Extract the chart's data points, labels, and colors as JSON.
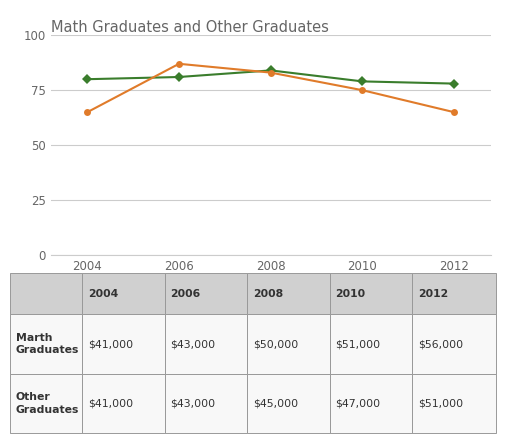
{
  "title": "Math Graduates and Other Graduates",
  "years": [
    2004,
    2006,
    2008,
    2010,
    2012
  ],
  "math_graduates": [
    80,
    81,
    84,
    79,
    78
  ],
  "other_graduates": [
    65,
    87,
    83,
    75,
    65
  ],
  "math_color": "#3a7d2c",
  "other_color": "#e07b2a",
  "ylim": [
    0,
    100
  ],
  "yticks": [
    0,
    25,
    50,
    75,
    100
  ],
  "legend_labels": [
    "Math Graduates",
    "Other Graduates"
  ],
  "table_header": [
    "",
    "2004",
    "2006",
    "2008",
    "2010",
    "2012"
  ],
  "table_row1_label": "Marth\nGraduates",
  "table_row2_label": "Other\nGraduates",
  "table_row1_values": [
    "$41,000",
    "$43,000",
    "$50,000",
    "$51,000",
    "$56,000"
  ],
  "table_row2_values": [
    "$41,000",
    "$43,000",
    "$45,000",
    "$47,000",
    "$51,000"
  ],
  "bg_color": "#ffffff",
  "grid_color": "#cccccc",
  "title_color": "#666666",
  "axis_text_color": "#666666",
  "table_header_bg": "#d0d0d0",
  "table_row_bg": "#f8f8f8",
  "table_border_color": "#999999"
}
